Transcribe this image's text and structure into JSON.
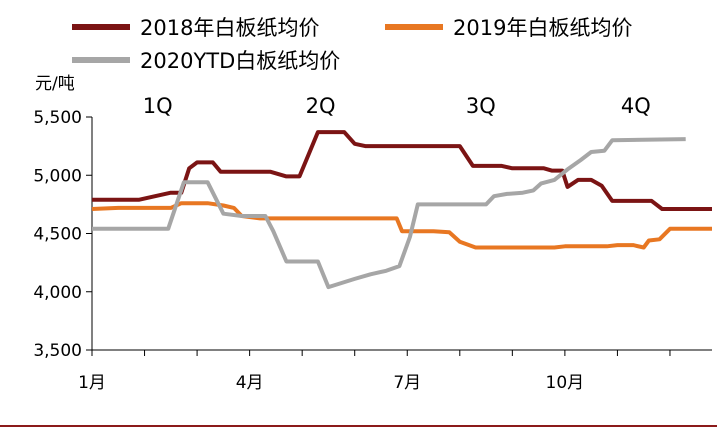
{
  "chart_data": {
    "type": "line",
    "title": "",
    "ylabel": "元/吨",
    "xlabel": "",
    "ylim": [
      3500,
      5500
    ],
    "xlim": [
      1,
      12.8
    ],
    "y_ticks": [
      "3,500",
      "4,000",
      "4,500",
      "5,000",
      "5,500"
    ],
    "y_tick_values": [
      3500,
      4000,
      4500,
      5000,
      5500
    ],
    "x_ticks": [
      {
        "label": "1月",
        "month": 1
      },
      {
        "label": "4月",
        "month": 4
      },
      {
        "label": "7月",
        "month": 7
      },
      {
        "label": "10月",
        "month": 10
      }
    ],
    "quarters": [
      {
        "label": "1Q",
        "month": 2.25
      },
      {
        "label": "2Q",
        "month": 5.35
      },
      {
        "label": "3Q",
        "month": 8.4
      },
      {
        "label": "4Q",
        "month": 11.35
      }
    ],
    "grid": false,
    "legend_position": "top",
    "series": [
      {
        "name": "2018年白板纸均价",
        "color": "#7b1414",
        "points": [
          [
            1.0,
            4790
          ],
          [
            1.9,
            4790
          ],
          [
            2.5,
            4850
          ],
          [
            2.7,
            4850
          ],
          [
            2.85,
            5060
          ],
          [
            3.0,
            5110
          ],
          [
            3.3,
            5110
          ],
          [
            3.45,
            5030
          ],
          [
            4.4,
            5030
          ],
          [
            4.7,
            4990
          ],
          [
            4.95,
            4990
          ],
          [
            5.3,
            5370
          ],
          [
            5.8,
            5370
          ],
          [
            6.0,
            5270
          ],
          [
            6.2,
            5250
          ],
          [
            8.0,
            5250
          ],
          [
            8.25,
            5080
          ],
          [
            8.8,
            5080
          ],
          [
            9.0,
            5060
          ],
          [
            9.6,
            5060
          ],
          [
            9.75,
            5040
          ],
          [
            9.95,
            5040
          ],
          [
            10.05,
            4900
          ],
          [
            10.25,
            4960
          ],
          [
            10.5,
            4960
          ],
          [
            10.7,
            4910
          ],
          [
            10.9,
            4780
          ],
          [
            11.65,
            4780
          ],
          [
            11.85,
            4710
          ],
          [
            12.8,
            4710
          ]
        ]
      },
      {
        "name": "2019年白板纸均价",
        "color": "#e87722",
        "points": [
          [
            1.0,
            4710
          ],
          [
            1.5,
            4720
          ],
          [
            2.5,
            4720
          ],
          [
            2.7,
            4760
          ],
          [
            3.2,
            4760
          ],
          [
            3.5,
            4740
          ],
          [
            3.7,
            4720
          ],
          [
            3.85,
            4650
          ],
          [
            4.2,
            4630
          ],
          [
            5.5,
            4630
          ],
          [
            6.8,
            4630
          ],
          [
            6.9,
            4520
          ],
          [
            7.5,
            4520
          ],
          [
            7.8,
            4510
          ],
          [
            8.0,
            4430
          ],
          [
            8.3,
            4380
          ],
          [
            9.0,
            4380
          ],
          [
            9.8,
            4380
          ],
          [
            10.0,
            4390
          ],
          [
            10.6,
            4390
          ],
          [
            10.8,
            4390
          ],
          [
            11.0,
            4400
          ],
          [
            11.3,
            4400
          ],
          [
            11.5,
            4380
          ],
          [
            11.6,
            4440
          ],
          [
            11.8,
            4450
          ],
          [
            12.0,
            4540
          ],
          [
            12.8,
            4540
          ]
        ]
      },
      {
        "name": "2020YTD白板纸均价",
        "color": "#a6a6a6",
        "points": [
          [
            1.0,
            4540
          ],
          [
            2.45,
            4540
          ],
          [
            2.75,
            4940
          ],
          [
            3.2,
            4940
          ],
          [
            3.5,
            4670
          ],
          [
            3.85,
            4650
          ],
          [
            4.3,
            4650
          ],
          [
            4.45,
            4520
          ],
          [
            4.7,
            4260
          ],
          [
            5.3,
            4260
          ],
          [
            5.5,
            4040
          ],
          [
            6.0,
            4110
          ],
          [
            6.3,
            4150
          ],
          [
            6.6,
            4180
          ],
          [
            6.85,
            4220
          ],
          [
            7.05,
            4470
          ],
          [
            7.2,
            4750
          ],
          [
            8.5,
            4750
          ],
          [
            8.65,
            4820
          ],
          [
            8.9,
            4840
          ],
          [
            9.2,
            4850
          ],
          [
            9.4,
            4870
          ],
          [
            9.55,
            4930
          ],
          [
            9.8,
            4960
          ],
          [
            10.05,
            5050
          ],
          [
            10.3,
            5130
          ],
          [
            10.5,
            5200
          ],
          [
            10.75,
            5210
          ],
          [
            10.9,
            5300
          ],
          [
            12.3,
            5310
          ]
        ]
      }
    ]
  }
}
